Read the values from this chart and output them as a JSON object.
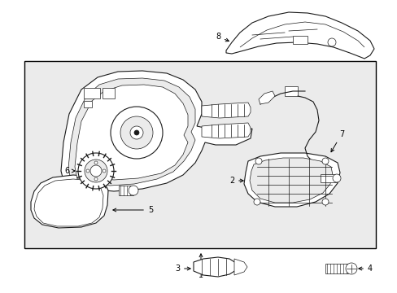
{
  "background_color": "#ffffff",
  "box_fill": "#ebebeb",
  "fig_width": 4.89,
  "fig_height": 3.6,
  "dpi": 100,
  "lc": "#1a1a1a",
  "bc": "#000000"
}
